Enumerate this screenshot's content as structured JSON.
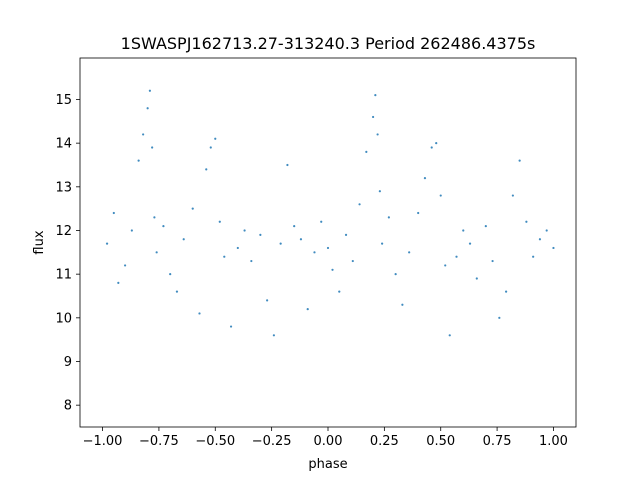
{
  "chart_data": {
    "type": "scatter",
    "title": "1SWASPJ162713.27-313240.3 Period 262486.4375s",
    "xlabel": "phase",
    "ylabel": "flux",
    "xlim": [
      -1.1,
      1.1
    ],
    "ylim": [
      7.5,
      15.95
    ],
    "xticks": [
      -1.0,
      -0.75,
      -0.5,
      -0.25,
      0.0,
      0.25,
      0.5,
      0.75,
      1.0
    ],
    "xtick_labels": [
      "−1.00",
      "−0.75",
      "−0.50",
      "−0.25",
      "0.00",
      "0.25",
      "0.50",
      "0.75",
      "1.00"
    ],
    "yticks": [
      8,
      9,
      10,
      11,
      12,
      13,
      14,
      15
    ],
    "ytick_labels": [
      "8",
      "9",
      "10",
      "11",
      "12",
      "13",
      "14",
      "15"
    ],
    "grid": false,
    "marker_color": "#1f77b4",
    "series": [
      {
        "points_x": [
          -0.98,
          -0.95,
          -0.93,
          -0.9,
          -0.87,
          -0.84,
          -0.82,
          -0.8,
          -0.79,
          -0.78,
          -0.77,
          -0.76,
          -0.73,
          -0.7,
          -0.67,
          -0.64,
          -0.6,
          -0.57,
          -0.54,
          -0.52,
          -0.5,
          -0.48,
          -0.46,
          -0.43,
          -0.4,
          -0.37,
          -0.34,
          -0.3,
          -0.27,
          -0.24,
          -0.21,
          -0.18,
          -0.15,
          -0.12,
          -0.09,
          -0.06,
          -0.03,
          0.0,
          0.02,
          0.05,
          0.08,
          0.11,
          0.14,
          0.17,
          0.2,
          0.21,
          0.22,
          0.23,
          0.24,
          0.27,
          0.3,
          0.33,
          0.36,
          0.4,
          0.43,
          0.46,
          0.48,
          0.5,
          0.52,
          0.54,
          0.57,
          0.6,
          0.63,
          0.66,
          0.7,
          0.73,
          0.76,
          0.79,
          0.82,
          0.85,
          0.88,
          0.91,
          0.94,
          0.97,
          1.0
        ],
        "points_y": [
          11.7,
          12.4,
          10.8,
          11.2,
          12.0,
          13.6,
          14.2,
          14.8,
          15.2,
          13.9,
          12.3,
          11.5,
          12.1,
          11.0,
          10.6,
          11.8,
          12.5,
          10.1,
          13.4,
          13.9,
          14.1,
          12.2,
          11.4,
          9.8,
          11.6,
          12.0,
          11.3,
          11.9,
          10.4,
          9.6,
          11.7,
          13.5,
          12.1,
          11.8,
          10.2,
          11.5,
          12.2,
          11.6,
          11.1,
          10.6,
          11.9,
          11.3,
          12.6,
          13.8,
          14.6,
          15.1,
          14.2,
          12.9,
          11.7,
          12.3,
          11.0,
          10.3,
          11.5,
          12.4,
          13.2,
          13.9,
          14.0,
          12.8,
          11.2,
          9.6,
          11.4,
          12.0,
          11.7,
          10.9,
          12.1,
          11.3,
          10.0,
          10.6,
          12.8,
          13.6,
          12.2,
          11.4,
          11.8,
          12.0,
          11.6
        ]
      }
    ]
  }
}
